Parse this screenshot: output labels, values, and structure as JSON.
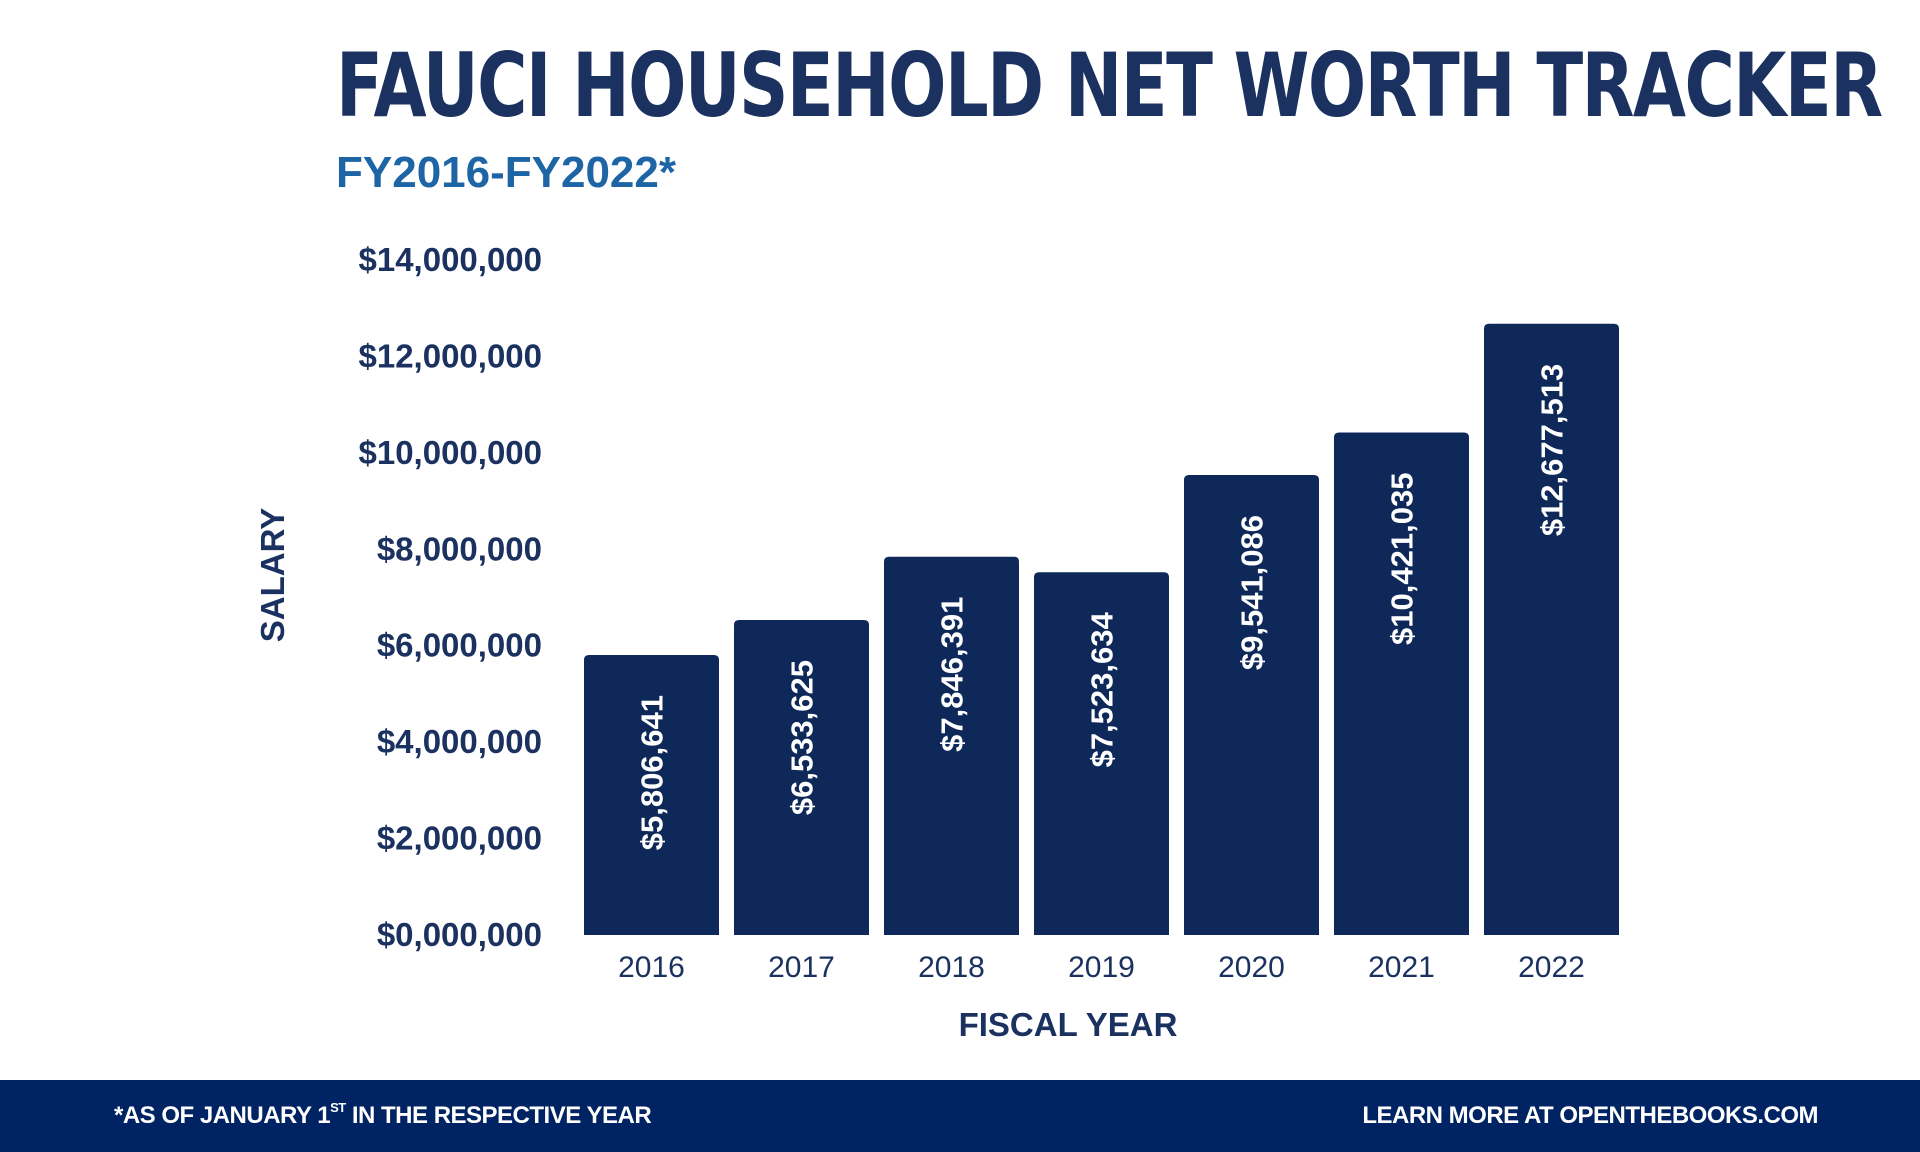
{
  "chart_data": {
    "type": "bar",
    "title": "FAUCI HOUSEHOLD NET WORTH TRACKER",
    "subtitle": "FY2016-FY2022*",
    "xlabel": "FISCAL YEAR",
    "ylabel": "SALARY",
    "categories": [
      "2016",
      "2017",
      "2018",
      "2019",
      "2020",
      "2021",
      "2022"
    ],
    "values": [
      5806641,
      6533625,
      7846391,
      7523634,
      9541086,
      10421035,
      12677513
    ],
    "data_labels": [
      "$5,806,641",
      "$6,533,625",
      "$7,846,391",
      "$7,523,634",
      "$9,541,086",
      "$10,421,035",
      "$12,677,513"
    ],
    "ylim": [
      0,
      14000000
    ],
    "yticks": [
      0,
      2000000,
      4000000,
      6000000,
      8000000,
      10000000,
      12000000,
      14000000
    ],
    "ytick_labels": [
      "$0,000,000",
      "$2,000,000",
      "$4,000,000",
      "$6,000,000",
      "$8,000,000",
      "$10,000,000",
      "$12,000,000",
      "$14,000,000"
    ],
    "grid": false,
    "bar_color": "#0e2859"
  },
  "footer": {
    "note_prefix": "*AS OF JANUARY 1",
    "note_sup": "ST",
    "note_suffix": " IN THE RESPECTIVE YEAR",
    "link": "LEARN MORE AT OPENTHEBOOKS.COM"
  }
}
